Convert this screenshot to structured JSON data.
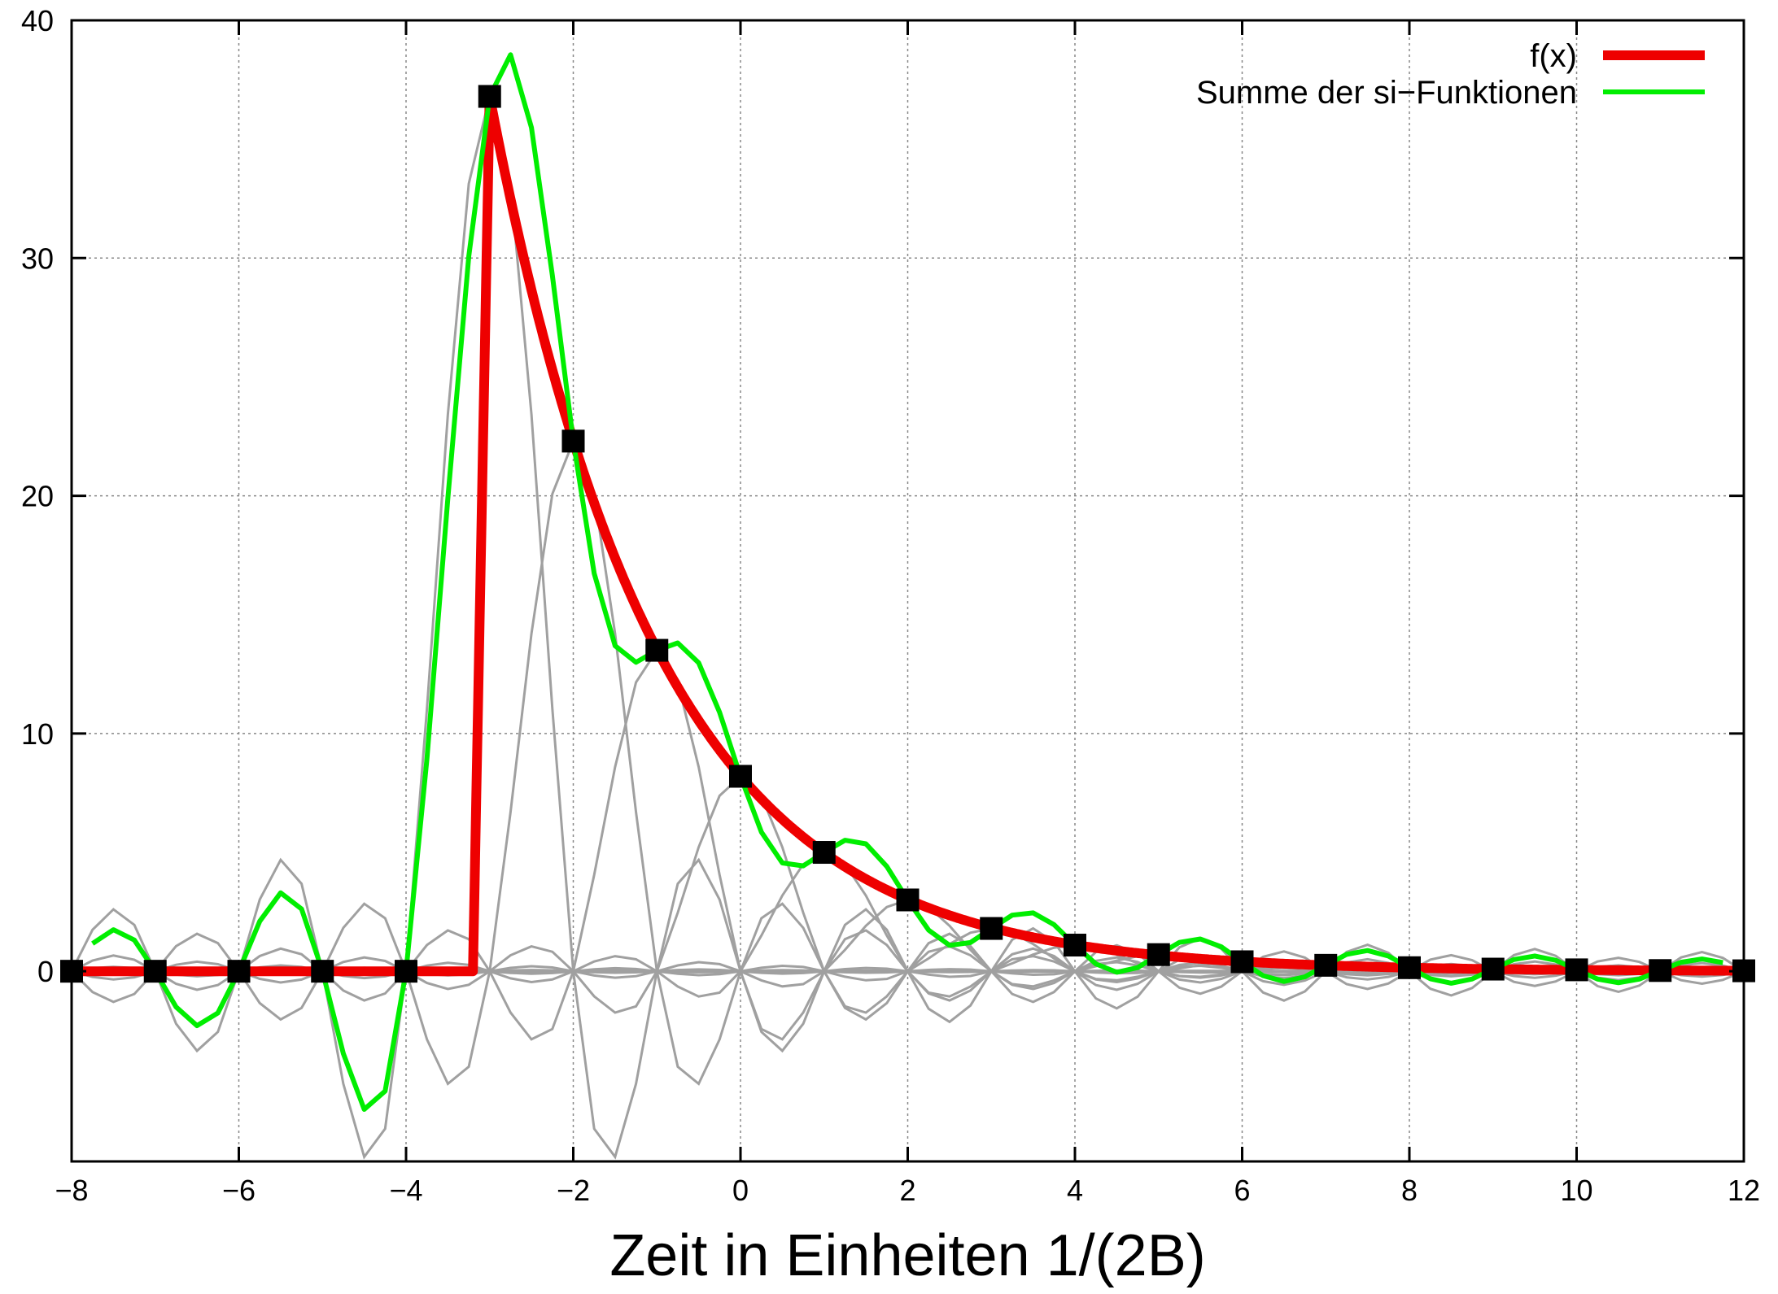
{
  "chart_data": {
    "type": "line",
    "title": "",
    "xlabel": "Zeit in Einheiten 1/(2B)",
    "ylabel": "",
    "xlim": [
      -8,
      12
    ],
    "ylim": [
      -8,
      40
    ],
    "grid": true,
    "xticks": [
      -8,
      -6,
      -4,
      -2,
      0,
      2,
      4,
      6,
      8,
      10,
      12
    ],
    "xtick_labels": [
      "−8",
      "−6",
      "−4",
      "−2",
      "0",
      "2",
      "4",
      "6",
      "8",
      "10",
      "12"
    ],
    "yticks": [
      0,
      10,
      20,
      30,
      40
    ],
    "ytick_labels": [
      "0",
      "10",
      "20",
      "30",
      "40"
    ],
    "legend_position": "top-right",
    "legend": [
      {
        "label": "f(x)",
        "color": "#ee0000"
      },
      {
        "label": "Summe der si−Funktionen",
        "color": "#00ee00"
      }
    ],
    "function": {
      "name": "f(x)",
      "description_points": {
        "x": [
          -8,
          -3.2,
          -3.2,
          -3,
          -2,
          -1,
          0,
          1,
          2,
          3,
          4,
          5,
          6,
          7,
          8,
          9,
          10,
          11,
          12
        ],
        "y": [
          0,
          0,
          0,
          36.8,
          22.3,
          13.5,
          8.2,
          5.0,
          3.0,
          1.8,
          1.1,
          0.7,
          0.4,
          0.25,
          0.15,
          0.09,
          0.06,
          0.03,
          0.02
        ]
      },
      "color": "#ee0000"
    },
    "samples": {
      "x": [
        -8,
        -7,
        -6,
        -5,
        -4,
        -3,
        -2,
        -1,
        0,
        1,
        2,
        3,
        4,
        5,
        6,
        7,
        8,
        9,
        10,
        11,
        12
      ],
      "y": [
        0,
        0,
        0,
        0,
        0,
        36.8,
        22.3,
        13.5,
        8.2,
        5.0,
        3.0,
        1.8,
        1.1,
        0.7,
        0.4,
        0.25,
        0.15,
        0.09,
        0.06,
        0.03,
        0.02
      ],
      "marker": "square",
      "color": "#000000"
    },
    "si_functions_color": "#a0a0a0",
    "sum_color": "#00ee00"
  }
}
